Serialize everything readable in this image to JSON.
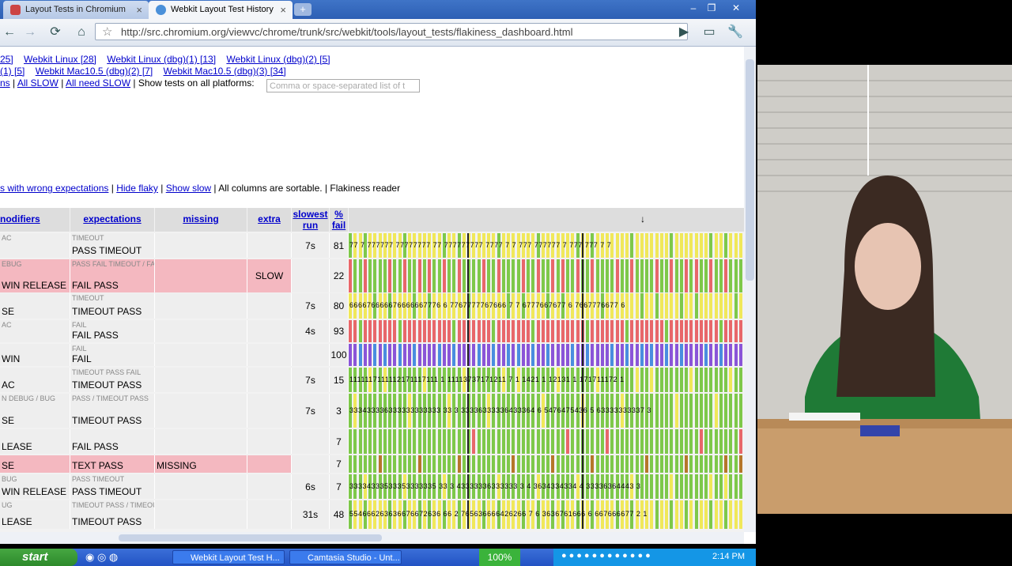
{
  "tabs": [
    {
      "title": "Layout Tests in Chromium",
      "active": false
    },
    {
      "title": "Webkit Layout Test History",
      "active": true
    }
  ],
  "toolbar": {
    "url": "http://src.chromium.org/viewvc/chrome/trunk/src/webkit/tools/layout_tests/flakiness_dashboard.html",
    "back_icon": "arrow-left-icon",
    "forward_icon": "arrow-right-icon",
    "reload_icon": "reload-icon",
    "home_icon": "home-icon",
    "star_icon": "star-icon"
  },
  "builders_row1": [
    "25]",
    "Webkit Linux [28]",
    "Webkit Linux (dbg)(1) [13]",
    "Webkit Linux (dbg)(2) [5]"
  ],
  "builders_row2": [
    "(1) [5]",
    "Webkit Mac10.5 (dbg)(2) [7]",
    "Webkit Mac10.5 (dbg)(3) [34]"
  ],
  "controls": {
    "ns": "ns",
    "all_slow": "All SLOW",
    "all_need_slow": "All need SLOW",
    "show_tests_label": "| Show tests on all platforms:",
    "filter_placeholder": "Comma or space-separated list of t",
    "sep1": "|",
    "sep2": "|"
  },
  "options": {
    "wrong_expectations": "s with wrong expectations",
    "hide_flaky": "Hide flaky",
    "show_slow": "Show slow",
    "sortable": "| All columns are sortable. | Flakiness reader",
    "sep": "|"
  },
  "headers": {
    "modifiers": "nodifiers",
    "expectations": "expectations",
    "missing": "missing",
    "extra": "extra",
    "slowest_run": "slowest run",
    "pct_fail": "% fail",
    "arrow": "↓"
  },
  "rows": [
    {
      "mod_small": "AC",
      "mod": "",
      "exp_small": "TIMEOUT",
      "exp": "PASS TIMEOUT",
      "missing": "",
      "extra": "",
      "slowest": "7s",
      "fail": "81",
      "pattern": "yellow",
      "pink": false
    },
    {
      "mod_small": "EBUG",
      "mod": "WIN RELEASE",
      "exp_small": "PASS FAIL TIMEOUT / FAIL PASS",
      "exp": "FAIL PASS",
      "missing": "",
      "extra": "SLOW",
      "slowest": "",
      "fail": "22",
      "pattern": "greenred",
      "pink": true
    },
    {
      "mod_small": "",
      "mod": "SE",
      "exp_small": "TIMEOUT",
      "exp": "TIMEOUT PASS",
      "missing": "",
      "extra": "",
      "slowest": "7s",
      "fail": "80",
      "pattern": "yellow6",
      "pink": false
    },
    {
      "mod_small": "AC",
      "mod": "",
      "exp_small": "FAIL",
      "exp": "FAIL PASS",
      "missing": "",
      "extra": "",
      "slowest": "4s",
      "fail": "93",
      "pattern": "red",
      "pink": false
    },
    {
      "mod_small": "",
      "mod": "WIN",
      "exp_small": "FAIL",
      "exp": "FAIL",
      "missing": "",
      "extra": "",
      "slowest": "",
      "fail": "100",
      "pattern": "purple",
      "pink": false
    },
    {
      "mod_small": "",
      "mod": "AC",
      "exp_small": "TIMEOUT PASS FAIL",
      "exp": "TIMEOUT PASS",
      "missing": "",
      "extra": "",
      "slowest": "7s",
      "fail": "15",
      "pattern": "green1",
      "pink": false
    },
    {
      "mod_small": "N DEBUG / BUG",
      "mod": "SE",
      "exp_small": "PASS / TIMEOUT PASS",
      "exp": "TIMEOUT PASS",
      "missing": "",
      "extra": "",
      "slowest": "7s",
      "fail": "3",
      "pattern": "green3",
      "pink": false
    },
    {
      "mod_small": "",
      "mod": "LEASE",
      "exp_small": "",
      "exp": "FAIL PASS",
      "missing": "",
      "extra": "",
      "slowest": "",
      "fail": "7",
      "pattern": "green",
      "pink": false
    },
    {
      "mod_small": "",
      "mod": "SE",
      "exp_small": "",
      "exp": "TEXT PASS",
      "missing": "MISSING",
      "extra": "",
      "slowest": "",
      "fail": "7",
      "pattern": "greenbrown",
      "pink": true
    },
    {
      "mod_small": "BUG",
      "mod": "WIN RELEASE",
      "exp_small": "PASS TIMEOUT",
      "exp": "PASS TIMEOUT",
      "missing": "",
      "extra": "",
      "slowest": "6s",
      "fail": "7",
      "pattern": "green3",
      "pink": false
    },
    {
      "mod_small": "UG",
      "mod": "LEASE",
      "exp_small": "TIMEOUT PASS / TIMEOUT PASS TEXT",
      "exp": "TIMEOUT PASS",
      "missing": "",
      "extra": "",
      "slowest": "31s",
      "fail": "48",
      "pattern": "mixed",
      "pink": false
    }
  ],
  "row_labels": {
    "r0": "77 7 777777 77777777 77 777777777 7777 7 7 777 777777 7 777 777 7 7",
    "r2": "666676666676666667776 6 7767777767666 7 7 6777667677 6 7667776677 6",
    "r5": "1111117111112171117111 1 11113737171211 7 1 1421 1 12131 1 171711172 1",
    "r6": "333433336333333333333 33 3 33336333336433364 6 5476475436 5 63333333337 3",
    "r9": "33334333533353333335 33 3 43333336333333 3 4 3634334334 4 33336364443 3",
    "r10": "554666263636676672636 66 2 765636666426266 7 6 3636761666 6 667666677 2 1"
  },
  "taskbar": {
    "start": "start",
    "task1": "Webkit Layout Test H...",
    "task2": "Camtasia Studio - Unt...",
    "zoom": "100%",
    "clock": "2:14 PM"
  }
}
